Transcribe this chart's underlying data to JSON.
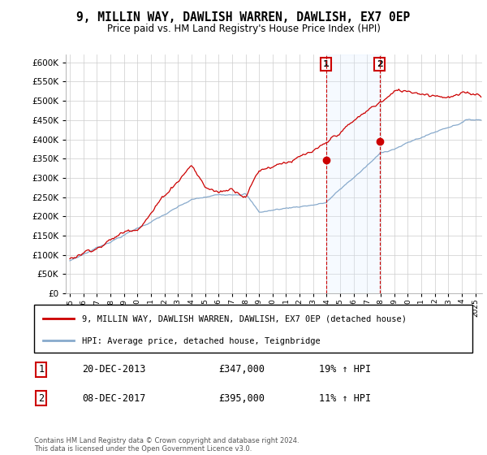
{
  "title": "9, MILLIN WAY, DAWLISH WARREN, DAWLISH, EX7 0EP",
  "subtitle": "Price paid vs. HM Land Registry's House Price Index (HPI)",
  "legend_line1": "9, MILLIN WAY, DAWLISH WARREN, DAWLISH, EX7 0EP (detached house)",
  "legend_line2": "HPI: Average price, detached house, Teignbridge",
  "annotation1_label": "1",
  "annotation1_date": "20-DEC-2013",
  "annotation1_price": "£347,000",
  "annotation1_hpi": "19% ↑ HPI",
  "annotation2_label": "2",
  "annotation2_date": "08-DEC-2017",
  "annotation2_price": "£395,000",
  "annotation2_hpi": "11% ↑ HPI",
  "footnote": "Contains HM Land Registry data © Crown copyright and database right 2024.\nThis data is licensed under the Open Government Licence v3.0.",
  "sale1_year": 2013.95,
  "sale1_value": 347000,
  "sale2_year": 2017.92,
  "sale2_value": 395000,
  "red_color": "#cc0000",
  "blue_color": "#88aacc",
  "highlight_color": "#ddeeff",
  "ylim_min": 0,
  "ylim_max": 620000,
  "xlim_min": 1994.7,
  "xlim_max": 2025.5,
  "label_box_color": "#cc0000"
}
